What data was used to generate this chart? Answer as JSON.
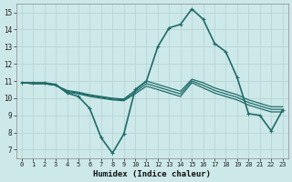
{
  "bg_color": "#cde8e8",
  "grid_color": "#b8d4d4",
  "line_color": "#1f6b6b",
  "marker_color": "#1f6b6b",
  "xlabel": "Humidex (Indice chaleur)",
  "xlim": [
    -0.5,
    23.5
  ],
  "ylim": [
    6.5,
    15.5
  ],
  "xticks": [
    0,
    1,
    2,
    3,
    4,
    5,
    6,
    7,
    8,
    9,
    10,
    11,
    12,
    13,
    14,
    15,
    16,
    17,
    18,
    19,
    20,
    21,
    22,
    23
  ],
  "yticks": [
    7,
    8,
    9,
    10,
    11,
    12,
    13,
    14,
    15
  ],
  "series": [
    {
      "x": [
        0,
        1,
        2,
        3,
        4,
        5,
        6,
        7,
        8,
        9,
        10,
        11,
        12,
        13,
        14,
        15,
        16,
        17,
        18,
        19,
        20,
        21,
        22,
        23
      ],
      "y": [
        10.9,
        10.9,
        10.9,
        10.8,
        10.3,
        10.1,
        9.4,
        7.7,
        6.8,
        7.9,
        10.5,
        11.0,
        13.0,
        14.1,
        14.3,
        15.2,
        14.6,
        13.2,
        12.7,
        11.2,
        9.1,
        9.0,
        8.1,
        9.3
      ],
      "has_markers": true,
      "linewidth": 1.2,
      "markersize": 2.2
    },
    {
      "x": [
        0,
        1,
        2,
        3,
        4,
        5,
        6,
        7,
        8,
        9,
        10,
        11,
        12,
        13,
        14,
        15,
        16,
        17,
        18,
        19,
        20,
        21,
        22,
        23
      ],
      "y": [
        10.9,
        10.85,
        10.85,
        10.75,
        10.45,
        10.35,
        10.2,
        10.1,
        10.0,
        9.95,
        10.45,
        11.0,
        10.8,
        10.6,
        10.4,
        11.1,
        10.9,
        10.6,
        10.4,
        10.2,
        9.9,
        9.7,
        9.5,
        9.5
      ],
      "has_markers": false,
      "linewidth": 0.9
    },
    {
      "x": [
        0,
        1,
        2,
        3,
        4,
        5,
        6,
        7,
        8,
        9,
        10,
        11,
        12,
        13,
        14,
        15,
        16,
        17,
        18,
        19,
        20,
        21,
        22,
        23
      ],
      "y": [
        10.9,
        10.85,
        10.85,
        10.75,
        10.4,
        10.3,
        10.15,
        10.05,
        9.95,
        9.9,
        10.35,
        10.85,
        10.65,
        10.45,
        10.25,
        11.0,
        10.75,
        10.45,
        10.25,
        10.05,
        9.75,
        9.55,
        9.35,
        9.35
      ],
      "has_markers": false,
      "linewidth": 0.9
    },
    {
      "x": [
        0,
        1,
        2,
        3,
        4,
        5,
        6,
        7,
        8,
        9,
        10,
        11,
        12,
        13,
        14,
        15,
        16,
        17,
        18,
        19,
        20,
        21,
        22,
        23
      ],
      "y": [
        10.9,
        10.85,
        10.85,
        10.75,
        10.35,
        10.25,
        10.1,
        10.0,
        9.9,
        9.85,
        10.25,
        10.7,
        10.5,
        10.3,
        10.1,
        10.9,
        10.6,
        10.3,
        10.1,
        9.9,
        9.6,
        9.4,
        9.2,
        9.2
      ],
      "has_markers": false,
      "linewidth": 0.9
    }
  ]
}
